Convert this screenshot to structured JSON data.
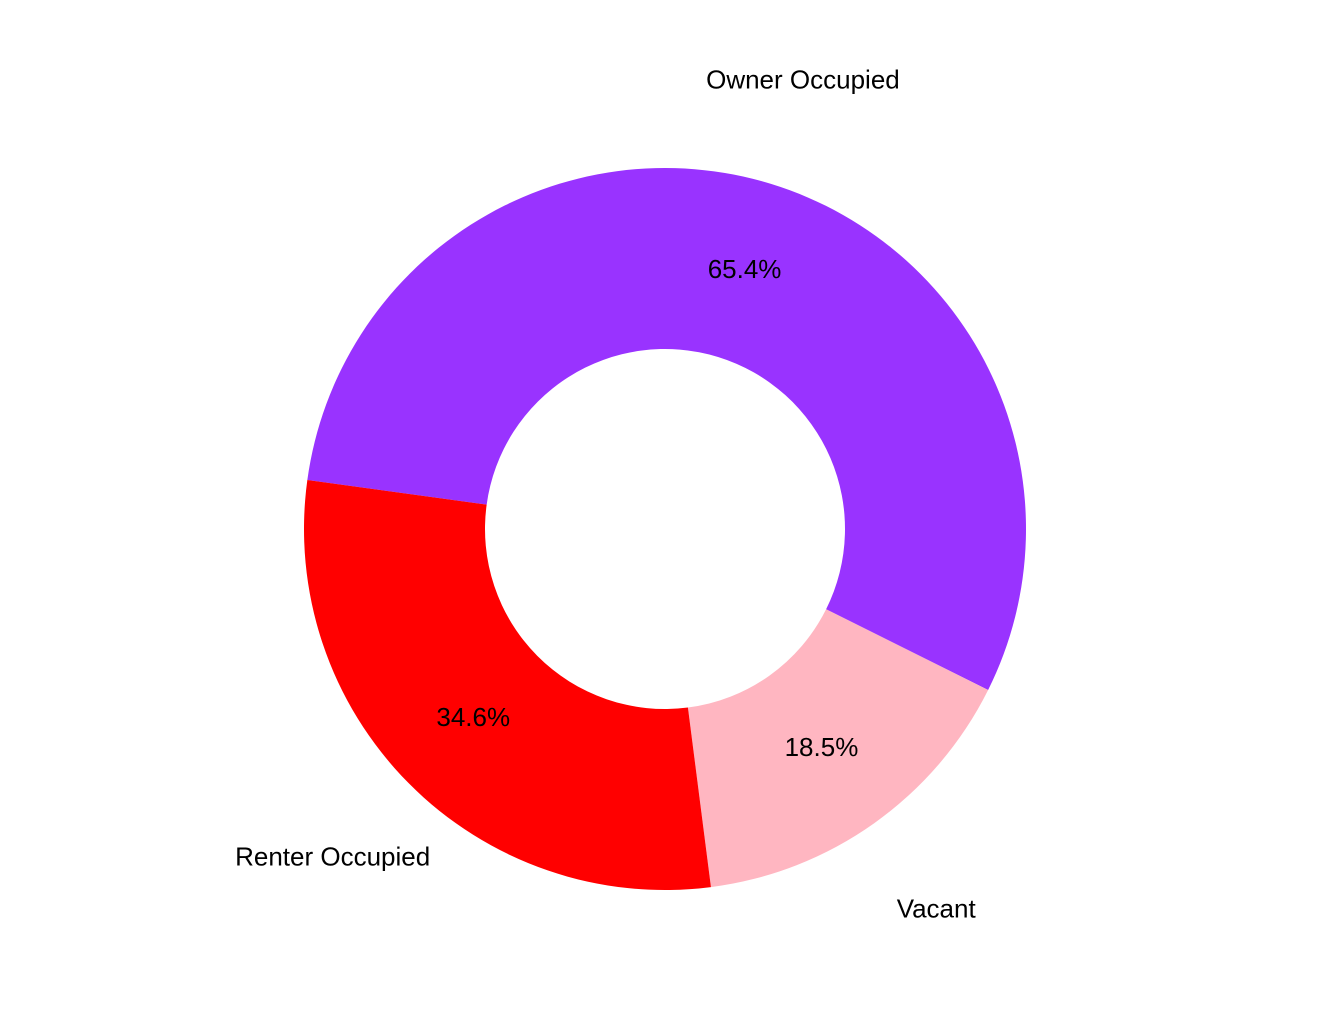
{
  "chart_data": {
    "type": "donut",
    "categories": [
      "Owner Occupied",
      "Vacant",
      "Renter Occupied"
    ],
    "values": [
      65.4,
      18.5,
      34.6
    ],
    "value_labels": [
      "65.4%",
      "18.5%",
      "34.6%"
    ],
    "colors": [
      "#9933ff",
      "#ffb6c1",
      "#ff0000"
    ]
  }
}
